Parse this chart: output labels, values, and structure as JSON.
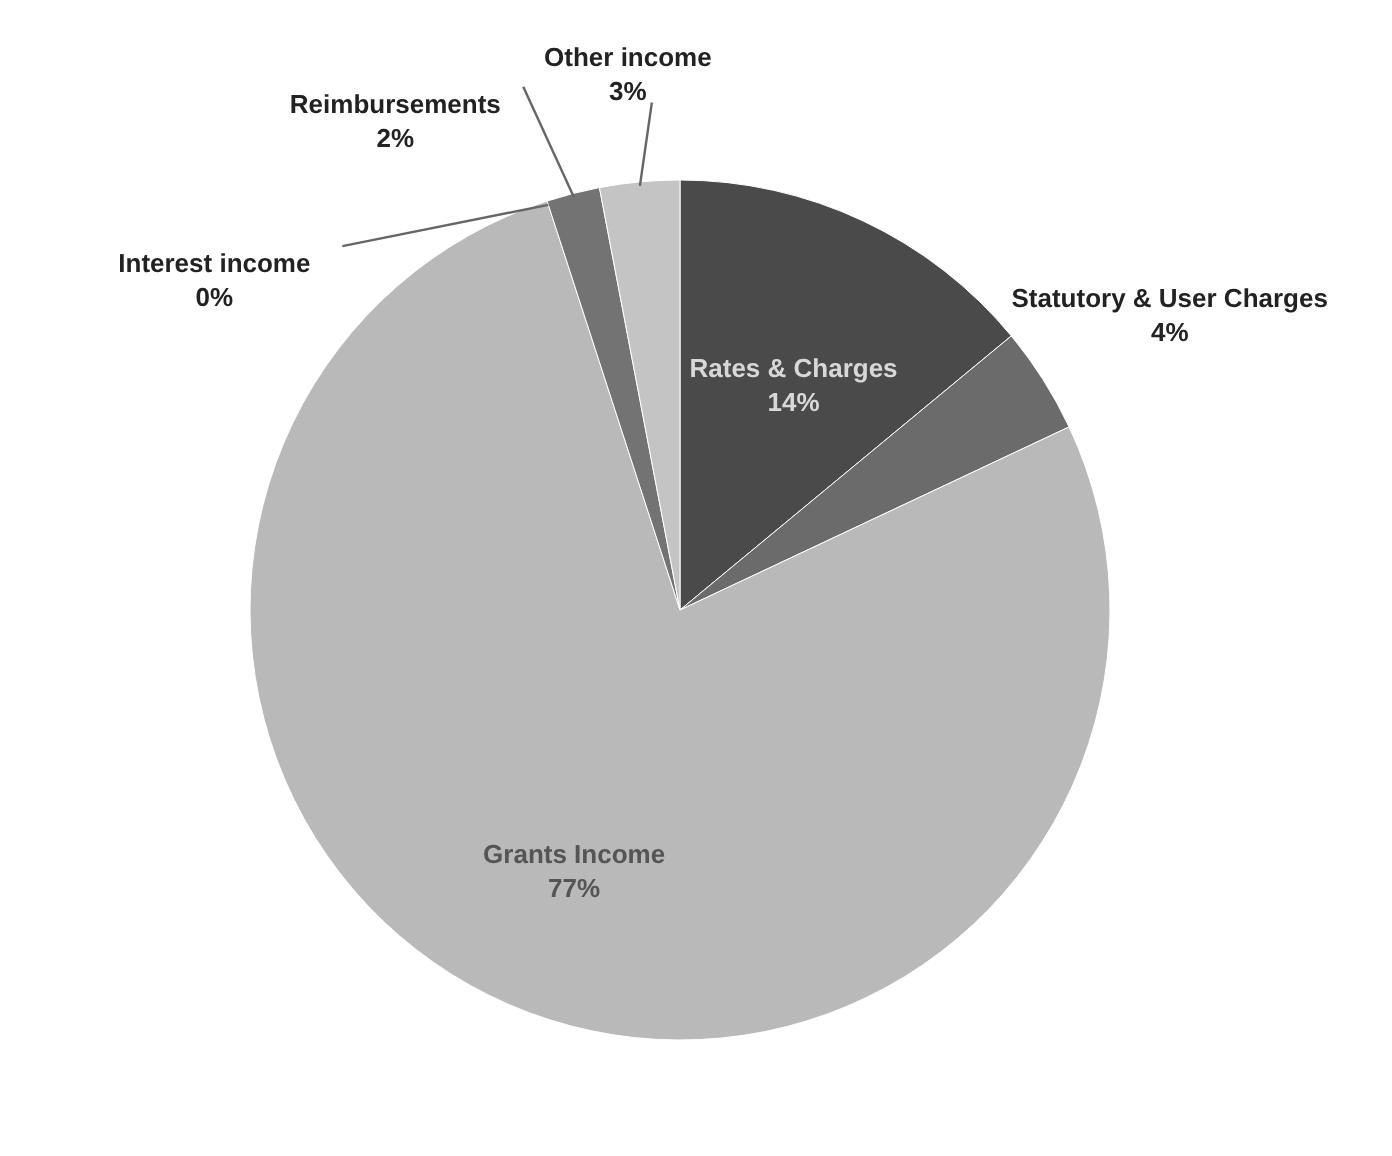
{
  "chart_data": {
    "type": "pie",
    "categories": [
      "Rates & Charges",
      "Statutory & User Charges",
      "Grants Income",
      "Interest income",
      "Reimbursements",
      "Other income"
    ],
    "values": [
      14,
      4,
      77,
      0,
      2,
      3
    ],
    "value_labels": [
      "14%",
      "4%",
      "77%",
      "0%",
      "2%",
      "3%"
    ],
    "colors": [
      "#4a4a4a",
      "#6b6b6b",
      "#b9b9b9",
      "#8c8c8c",
      "#737373",
      "#c4c4c4"
    ]
  }
}
